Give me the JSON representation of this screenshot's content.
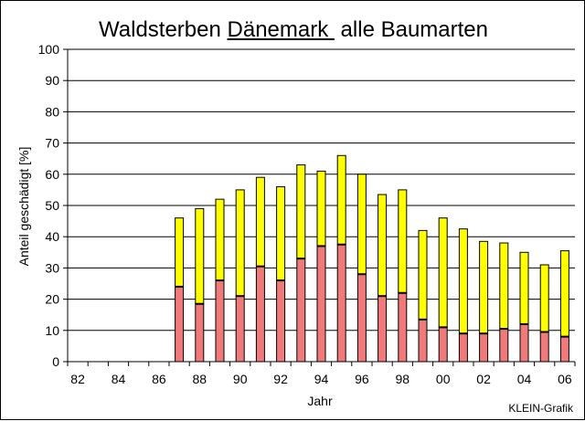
{
  "title": {
    "part1": "Waldsterben ",
    "underlined": "Dänemark ",
    "part2": " alle Baumarten"
  },
  "credit": "KLEIN-Grafik",
  "colors": {
    "lower_segment": "#f07a7a",
    "upper_segment": "#ffff00",
    "gridline": "#000000",
    "background": "#ffffff"
  },
  "chart_data": {
    "type": "bar",
    "stacked": true,
    "xlabel": "Jahr",
    "ylabel": "Anteil geschädigt [%]",
    "ylim": [
      0,
      100
    ],
    "yticks": [
      0,
      10,
      20,
      30,
      40,
      50,
      60,
      70,
      80,
      90,
      100
    ],
    "xticks": [
      "82",
      "84",
      "86",
      "88",
      "90",
      "92",
      "94",
      "96",
      "98",
      "00",
      "02",
      "04",
      "06"
    ],
    "grid": true,
    "legend": "none",
    "categories": [
      "1982",
      "1983",
      "1984",
      "1985",
      "1986",
      "1987",
      "1988",
      "1989",
      "1990",
      "1991",
      "1992",
      "1993",
      "1994",
      "1995",
      "1996",
      "1997",
      "1998",
      "1999",
      "2000",
      "2001",
      "2002",
      "2003",
      "2004",
      "2005",
      "2006"
    ],
    "lower_values": [
      null,
      null,
      null,
      null,
      null,
      24,
      18.5,
      26,
      21,
      30.5,
      26,
      33,
      37,
      37.5,
      28,
      21,
      22,
      13.5,
      11,
      9,
      9,
      10.5,
      12,
      9.5,
      8
    ],
    "total_values": [
      null,
      null,
      null,
      null,
      null,
      46,
      49,
      52,
      55,
      59,
      56,
      63,
      61,
      66,
      60,
      53.5,
      55,
      42,
      46,
      42.5,
      38.5,
      38,
      35,
      31,
      35.5
    ]
  }
}
